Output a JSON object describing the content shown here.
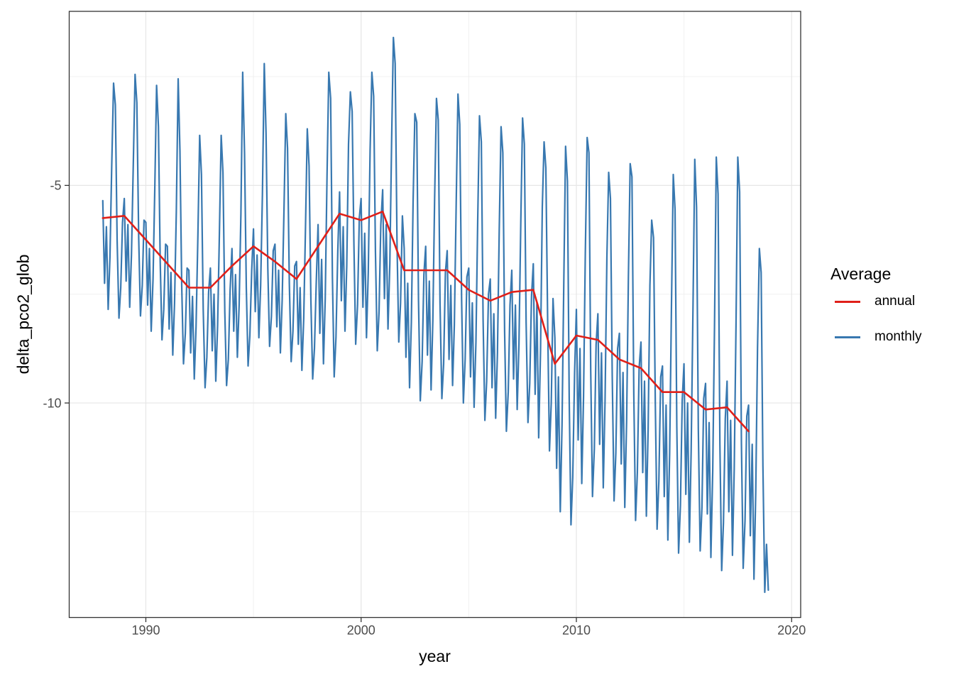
{
  "figure": {
    "background": "#ffffff",
    "panel_border_color": "#333333",
    "grid_major_color": "#e6e6e6",
    "grid_minor_color": "#f0f0f0",
    "tick_color": "#333333",
    "tick_label_color": "#4d4d4d"
  },
  "axes": {
    "x": {
      "label": "year",
      "ticks": [
        1990,
        2000,
        2010,
        2020
      ],
      "tick_labels": [
        "1990",
        "2000",
        "2010",
        "2020"
      ],
      "minor_ticks": [
        1995,
        2005,
        2015
      ]
    },
    "y": {
      "label": "delta_pco2_glob",
      "ticks": [
        -5,
        -10
      ],
      "tick_labels": [
        "-5",
        "-10"
      ],
      "minor_ticks": [
        -2.5,
        -7.5,
        -12.5
      ]
    }
  },
  "legend": {
    "title": "Average",
    "items": [
      {
        "label": "annual",
        "color": "#e02019"
      },
      {
        "label": "monthly",
        "color": "#3878b0"
      }
    ]
  },
  "chart_data": {
    "type": "line",
    "title": "",
    "xlabel": "year",
    "ylabel": "delta_pco2_glob",
    "xlim": [
      1986.44,
      2020.42
    ],
    "ylim": [
      -14.93,
      -1.0
    ],
    "grid": true,
    "legend_position": "right",
    "legend_title": "Average",
    "series": [
      {
        "name": "annual",
        "color": "#e02019",
        "width": 2.6,
        "x": [
          1988,
          1989,
          1990,
          1991,
          1992,
          1993,
          1994,
          1995,
          1996,
          1997,
          1998,
          1999,
          2000,
          2001,
          2002,
          2003,
          2004,
          2005,
          2006,
          2007,
          2008,
          2009,
          2010,
          2011,
          2012,
          2013,
          2014,
          2015,
          2016,
          2017,
          2018
        ],
        "y": [
          -5.75,
          -5.7,
          -6.25,
          -6.8,
          -7.35,
          -7.35,
          -6.85,
          -6.4,
          -6.75,
          -7.15,
          -6.4,
          -5.65,
          -5.8,
          -5.6,
          -6.95,
          -6.95,
          -6.95,
          -7.4,
          -7.65,
          -7.45,
          -7.4,
          -9.1,
          -8.45,
          -8.55,
          -9.0,
          -9.2,
          -9.75,
          -9.75,
          -10.15,
          -10.1,
          -10.65
        ]
      },
      {
        "name": "monthly",
        "color": "#3878b0",
        "width": 2.2,
        "x_start": 1988.0,
        "x_step_years": 0.0833333,
        "y": [
          -5.35,
          -7.25,
          -5.95,
          -7.85,
          -6.65,
          -4.55,
          -2.65,
          -3.15,
          -6.25,
          -8.05,
          -7.35,
          -5.85,
          -5.3,
          -7.2,
          -5.9,
          -7.8,
          -6.6,
          -4.5,
          -2.45,
          -3.1,
          -6.2,
          -8.0,
          -7.3,
          -5.8,
          -5.85,
          -7.75,
          -6.45,
          -8.35,
          -7.15,
          -5.05,
          -2.7,
          -3.65,
          -6.75,
          -8.55,
          -7.85,
          -6.35,
          -6.4,
          -8.3,
          -7.0,
          -8.9,
          -7.7,
          -5.6,
          -2.55,
          -4.2,
          -7.3,
          -9.1,
          -8.4,
          -6.9,
          -6.95,
          -8.85,
          -7.55,
          -9.45,
          -8.25,
          -6.15,
          -3.85,
          -4.75,
          -7.85,
          -9.65,
          -8.95,
          -7.45,
          -6.9,
          -8.8,
          -7.5,
          -9.5,
          -8.2,
          -6.1,
          -3.85,
          -4.7,
          -7.9,
          -9.6,
          -9.0,
          -7.4,
          -6.45,
          -8.35,
          -7.05,
          -8.95,
          -7.75,
          -5.65,
          -2.4,
          -4.25,
          -7.35,
          -9.15,
          -8.45,
          -6.95,
          -6.0,
          -7.9,
          -6.6,
          -8.5,
          -7.3,
          -5.2,
          -2.2,
          -3.8,
          -6.9,
          -8.7,
          -8.0,
          -6.5,
          -6.35,
          -8.25,
          -6.95,
          -8.85,
          -7.65,
          -5.55,
          -3.35,
          -4.15,
          -7.25,
          -9.05,
          -8.35,
          -6.85,
          -6.75,
          -8.65,
          -7.35,
          -9.25,
          -8.05,
          -5.95,
          -3.7,
          -4.55,
          -7.65,
          -9.45,
          -8.75,
          -7.25,
          -5.9,
          -8.4,
          -6.7,
          -9.1,
          -7.6,
          -4.8,
          -2.4,
          -3.0,
          -7.1,
          -9.4,
          -8.5,
          -6.5,
          -5.15,
          -7.65,
          -5.95,
          -8.35,
          -6.85,
          -4.05,
          -2.85,
          -3.3,
          -6.35,
          -8.65,
          -7.75,
          -5.75,
          -5.3,
          -7.8,
          -6.1,
          -8.5,
          -7.0,
          -4.2,
          -2.4,
          -2.95,
          -6.5,
          -8.8,
          -7.9,
          -5.9,
          -5.1,
          -7.6,
          -5.9,
          -8.3,
          -6.8,
          -4.0,
          -1.6,
          -2.2,
          -6.3,
          -8.6,
          -7.7,
          -5.7,
          -6.45,
          -8.95,
          -7.25,
          -9.65,
          -8.15,
          -5.35,
          -3.35,
          -3.55,
          -7.65,
          -9.95,
          -9.05,
          -7.05,
          -6.4,
          -8.9,
          -7.2,
          -9.7,
          -8.1,
          -5.3,
          -3.0,
          -3.5,
          -7.7,
          -9.9,
          -9.1,
          -7.0,
          -6.5,
          -9.0,
          -7.3,
          -9.6,
          -8.2,
          -5.4,
          -2.9,
          -3.6,
          -7.6,
          -10.0,
          -9.0,
          -7.1,
          -6.9,
          -9.4,
          -7.7,
          -10.1,
          -8.6,
          -5.8,
          -3.4,
          -4.0,
          -8.1,
          -10.4,
          -9.5,
          -7.5,
          -7.15,
          -9.65,
          -7.95,
          -10.35,
          -8.85,
          -6.05,
          -3.65,
          -4.25,
          -8.35,
          -10.65,
          -9.75,
          -7.75,
          -6.95,
          -9.45,
          -7.75,
          -10.15,
          -8.65,
          -5.85,
          -3.45,
          -4.05,
          -8.15,
          -10.45,
          -9.55,
          -7.55,
          -6.8,
          -9.8,
          -7.7,
          -10.8,
          -8.8,
          -5.5,
          -4.0,
          -4.6,
          -8.2,
          -11.1,
          -10.0,
          -7.6,
          -8.5,
          -11.5,
          -9.4,
          -12.5,
          -10.5,
          -7.2,
          -4.1,
          -4.9,
          -9.9,
          -12.8,
          -11.7,
          -9.3,
          -7.85,
          -10.85,
          -8.75,
          -11.85,
          -9.85,
          -6.55,
          -3.9,
          -4.25,
          -9.25,
          -12.15,
          -11.05,
          -8.65,
          -7.95,
          -10.95,
          -8.85,
          -11.95,
          -9.95,
          -6.65,
          -4.7,
          -5.3,
          -9.35,
          -12.25,
          -11.15,
          -8.75,
          -8.4,
          -11.4,
          -9.3,
          -12.4,
          -10.4,
          -7.1,
          -4.5,
          -4.8,
          -9.8,
          -12.7,
          -11.6,
          -9.2,
          -8.6,
          -11.6,
          -9.5,
          -12.6,
          -10.6,
          -7.3,
          -5.8,
          -6.2,
          -10.0,
          -12.9,
          -11.8,
          -9.4,
          -9.15,
          -12.15,
          -10.05,
          -13.15,
          -11.15,
          -7.85,
          -4.75,
          -5.55,
          -10.55,
          -13.45,
          -12.35,
          -9.95,
          -9.1,
          -12.1,
          -10.0,
          -13.2,
          -11.1,
          -7.8,
          -4.4,
          -5.5,
          -10.6,
          -13.4,
          -12.4,
          -9.9,
          -9.55,
          -12.55,
          -10.45,
          -13.55,
          -11.55,
          -8.25,
          -4.35,
          -5.2,
          -10.95,
          -13.85,
          -12.75,
          -10.35,
          -9.5,
          -12.5,
          -10.4,
          -13.5,
          -11.5,
          -8.2,
          -4.35,
          -5.15,
          -10.9,
          -13.8,
          -12.7,
          -10.3,
          -10.05,
          -13.05,
          -10.95,
          -14.05,
          -12.05,
          -8.75,
          -6.45,
          -7.0,
          -11.45,
          -14.35,
          -13.25,
          -14.3
        ]
      }
    ]
  }
}
